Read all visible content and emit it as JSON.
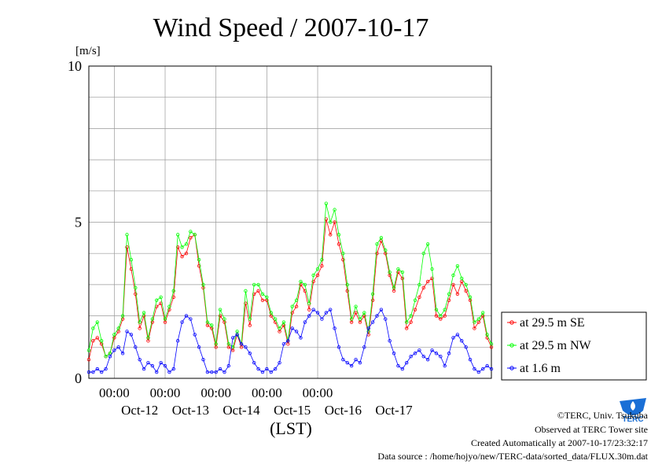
{
  "chart_data": {
    "type": "line",
    "title": "Wind Speed / 2007-10-17",
    "ylabel": "[m/s]",
    "xlabel": "(LST)",
    "ylim": [
      0,
      10
    ],
    "yticks": [
      "0",
      "5",
      "10"
    ],
    "x_time_labels": [
      "00:00",
      "00:00",
      "00:00",
      "00:00",
      "00:00"
    ],
    "x_day_labels": [
      "Oct-12",
      "Oct-13",
      "Oct-14",
      "Oct-15",
      "Oct-16",
      "Oct-17"
    ],
    "grid": true,
    "legend_position": "right",
    "x_start": "2007-10-11 12:00",
    "x_step_hours": 2,
    "series": [
      {
        "name": "at 29.5 m SE",
        "color": "#ff0000",
        "values": [
          0.6,
          1.2,
          1.3,
          1.1,
          0.7,
          0.8,
          1.3,
          1.5,
          1.9,
          4.2,
          3.5,
          2.7,
          1.6,
          2.0,
          1.2,
          1.8,
          2.3,
          2.4,
          1.8,
          2.2,
          2.6,
          4.2,
          3.9,
          4.0,
          4.5,
          4.6,
          3.6,
          2.9,
          1.7,
          1.6,
          1.0,
          2.0,
          1.8,
          1.0,
          0.9,
          1.4,
          1.0,
          2.4,
          1.7,
          2.7,
          2.8,
          2.5,
          2.5,
          2.0,
          1.8,
          1.5,
          1.7,
          1.1,
          2.1,
          2.3,
          3.0,
          2.8,
          2.2,
          3.1,
          3.3,
          3.6,
          5.1,
          4.6,
          5.0,
          4.3,
          3.8,
          2.8,
          1.8,
          2.1,
          1.8,
          2.0,
          1.4,
          2.5,
          4.0,
          4.4,
          4.0,
          3.3,
          2.8,
          3.4,
          3.2,
          1.6,
          1.8,
          2.2,
          2.6,
          2.9,
          3.1,
          3.2,
          2.0,
          1.9,
          2.0,
          2.5,
          3.0,
          2.7,
          3.1,
          2.8,
          2.5,
          1.6,
          1.8,
          2.0,
          1.3,
          1.0
        ]
      },
      {
        "name": "at 29.5 m NW",
        "color": "#00ff00",
        "values": [
          0.9,
          1.6,
          1.8,
          1.2,
          0.7,
          0.8,
          1.4,
          1.6,
          2.0,
          4.6,
          3.8,
          2.9,
          1.8,
          2.1,
          1.3,
          1.9,
          2.5,
          2.6,
          1.9,
          2.3,
          2.8,
          4.6,
          4.2,
          4.3,
          4.7,
          4.6,
          3.8,
          3.0,
          1.8,
          1.7,
          1.1,
          2.2,
          1.9,
          1.1,
          1.0,
          1.5,
          1.1,
          2.8,
          1.9,
          3.0,
          3.0,
          2.7,
          2.6,
          2.1,
          1.9,
          1.6,
          1.8,
          1.2,
          2.3,
          2.5,
          3.1,
          3.0,
          2.4,
          3.3,
          3.5,
          3.8,
          5.6,
          5.0,
          5.4,
          4.6,
          4.0,
          3.0,
          1.9,
          2.3,
          1.9,
          2.1,
          1.5,
          2.7,
          4.3,
          4.5,
          4.1,
          3.4,
          2.9,
          3.5,
          3.4,
          1.8,
          2.0,
          2.5,
          3.0,
          4.0,
          4.3,
          3.5,
          2.2,
          2.0,
          2.2,
          2.7,
          3.3,
          3.6,
          3.2,
          3.0,
          2.6,
          1.8,
          1.9,
          2.1,
          1.4,
          1.1
        ]
      },
      {
        "name": "at 1.6 m",
        "color": "#0000ff",
        "values": [
          0.2,
          0.2,
          0.3,
          0.2,
          0.3,
          0.7,
          0.9,
          1.0,
          0.8,
          1.5,
          1.4,
          1.0,
          0.6,
          0.3,
          0.5,
          0.4,
          0.2,
          0.5,
          0.4,
          0.2,
          0.3,
          1.2,
          1.8,
          2.0,
          1.9,
          1.4,
          1.0,
          0.6,
          0.2,
          0.2,
          0.2,
          0.3,
          0.2,
          0.4,
          1.3,
          1.4,
          1.1,
          1.0,
          0.8,
          0.5,
          0.3,
          0.2,
          0.3,
          0.2,
          0.3,
          0.5,
          1.1,
          1.2,
          1.6,
          1.5,
          1.3,
          1.8,
          2.0,
          2.2,
          2.1,
          1.9,
          2.1,
          2.2,
          1.6,
          1.0,
          0.6,
          0.5,
          0.4,
          0.6,
          0.5,
          1.0,
          1.6,
          1.8,
          2.0,
          2.2,
          1.9,
          1.2,
          0.8,
          0.4,
          0.3,
          0.5,
          0.7,
          0.8,
          0.9,
          0.7,
          0.6,
          0.9,
          0.8,
          0.7,
          0.4,
          0.8,
          1.3,
          1.4,
          1.2,
          1.0,
          0.6,
          0.3,
          0.2,
          0.3,
          0.4,
          0.3
        ]
      }
    ]
  },
  "footer": {
    "copyright": "©TERC, Univ. Tsukuba",
    "observed": "Observed at TERC Tower site",
    "created": "Created Automatically at 2007-10-17/23:32:17",
    "source": "Data source : /home/hojyo/new/TERC-data/sorted_data/FLUX.30m.dat"
  },
  "logo": {
    "text": "TERC",
    "color": "#1a6fd6"
  }
}
